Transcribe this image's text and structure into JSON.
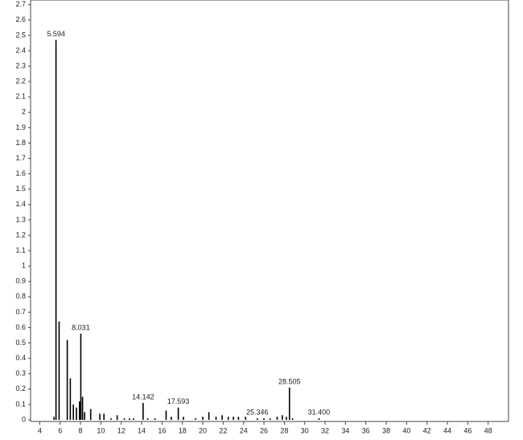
{
  "chart_data": {
    "type": "stick",
    "x": [
      5.4,
      5.594,
      5.9,
      6.7,
      7.0,
      7.3,
      7.6,
      7.9,
      8.031,
      8.2,
      8.4,
      9.0,
      9.9,
      10.3,
      11.0,
      11.6,
      12.3,
      12.8,
      13.2,
      14.142,
      14.6,
      15.3,
      16.4,
      16.9,
      17.593,
      18.1,
      19.3,
      20.0,
      20.6,
      21.3,
      21.9,
      22.5,
      23.0,
      23.5,
      24.2,
      25.346,
      26.0,
      26.6,
      27.3,
      27.8,
      28.2,
      28.505,
      28.8,
      31.4
    ],
    "values": [
      0.02,
      2.47,
      0.64,
      0.52,
      0.27,
      0.1,
      0.08,
      0.12,
      0.56,
      0.15,
      0.05,
      0.07,
      0.04,
      0.04,
      0.01,
      0.03,
      0.01,
      0.01,
      0.01,
      0.11,
      0.01,
      0.01,
      0.06,
      0.02,
      0.08,
      0.02,
      0.01,
      0.02,
      0.05,
      0.02,
      0.03,
      0.02,
      0.02,
      0.02,
      0.02,
      0.01,
      0.01,
      0.01,
      0.02,
      0.03,
      0.02,
      0.21,
      0.01,
      0.01
    ],
    "color": "#000000",
    "annotations": [
      {
        "x": 5.594,
        "y": 2.47,
        "text": "5.594"
      },
      {
        "x": 8.031,
        "y": 0.56,
        "text": "8.031"
      },
      {
        "x": 14.142,
        "y": 0.11,
        "text": "14.142"
      },
      {
        "x": 17.593,
        "y": 0.08,
        "text": "17.593"
      },
      {
        "x": 25.346,
        "y": 0.01,
        "text": "25.346"
      },
      {
        "x": 28.505,
        "y": 0.21,
        "text": "28.505"
      },
      {
        "x": 31.4,
        "y": 0.01,
        "text": "31.400"
      }
    ],
    "xlim": [
      3.1,
      50
    ],
    "xticks": [
      4,
      6,
      8,
      10,
      12,
      14,
      16,
      18,
      20,
      22,
      24,
      26,
      28,
      30,
      32,
      34,
      36,
      38,
      40,
      42,
      44,
      46,
      48
    ],
    "ylim": [
      0,
      2.73
    ],
    "yticks": [
      0,
      0.1,
      0.2,
      0.3,
      0.4,
      0.5,
      0.6,
      0.7,
      0.8,
      0.9,
      1,
      1.1,
      1.2,
      1.3,
      1.4,
      1.5,
      1.6,
      1.7,
      1.8,
      1.9,
      2,
      2.1,
      2.2,
      2.3,
      2.4,
      2.5,
      2.6,
      2.7
    ]
  }
}
